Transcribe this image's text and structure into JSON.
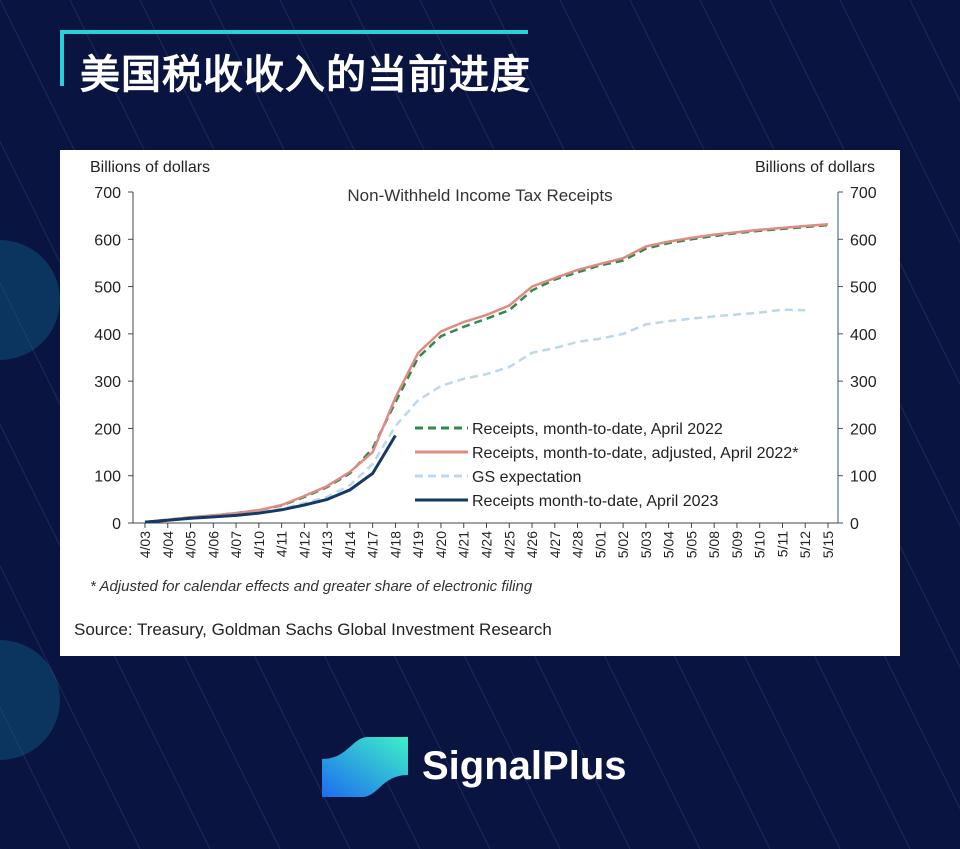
{
  "page": {
    "title": "美国税收收入的当前进度",
    "brand": "SignalPlus",
    "accent_color": "#2ad0d8"
  },
  "chart_data": {
    "type": "line",
    "title": "Non-Withheld Income Tax Receipts",
    "ylabel_left": "Billions of dollars",
    "ylabel_right": "Billions of dollars",
    "ylim": [
      0,
      700
    ],
    "yticks": [
      0,
      100,
      200,
      300,
      400,
      500,
      600,
      700
    ],
    "categories": [
      "4/03",
      "4/04",
      "4/05",
      "4/06",
      "4/07",
      "4/10",
      "4/11",
      "4/12",
      "4/13",
      "4/14",
      "4/17",
      "4/18",
      "4/19",
      "4/20",
      "4/21",
      "4/24",
      "4/25",
      "4/26",
      "4/27",
      "4/28",
      "5/01",
      "5/02",
      "5/03",
      "5/04",
      "5/05",
      "5/08",
      "5/09",
      "5/10",
      "5/11",
      "5/12",
      "5/15"
    ],
    "legend_position": "center-right",
    "series": [
      {
        "name": "Receipts, month-to-date, April 2022",
        "color": "#2e8b4a",
        "style": "dashed",
        "values": [
          2,
          7,
          12,
          16,
          21,
          27,
          37,
          55,
          76,
          105,
          158,
          255,
          350,
          395,
          415,
          432,
          450,
          492,
          515,
          530,
          545,
          555,
          580,
          592,
          600,
          607,
          613,
          618,
          622,
          626,
          630
        ]
      },
      {
        "name": "Receipts, month-to-date, adjusted, April 2022*",
        "color": "#e08a84",
        "style": "solid",
        "values": [
          2,
          7,
          12,
          16,
          21,
          27,
          38,
          57,
          78,
          108,
          150,
          265,
          360,
          405,
          425,
          440,
          460,
          500,
          518,
          535,
          548,
          560,
          585,
          595,
          603,
          610,
          615,
          620,
          624,
          628,
          632
        ]
      },
      {
        "name": "GS expectation",
        "color": "#bcd7ee",
        "style": "dashed",
        "values": [
          2,
          5,
          9,
          13,
          17,
          22,
          30,
          42,
          55,
          80,
          125,
          205,
          260,
          290,
          305,
          315,
          330,
          360,
          370,
          383,
          390,
          400,
          420,
          427,
          432,
          437,
          441,
          445,
          451,
          450,
          null
        ]
      },
      {
        "name": "Receipts month-to-date, April 2023",
        "color": "#133a66",
        "style": "solid",
        "values": [
          2,
          6,
          10,
          13,
          16,
          21,
          28,
          38,
          50,
          70,
          105,
          185,
          null,
          null,
          null,
          null,
          null,
          null,
          null,
          null,
          null,
          null,
          null,
          null,
          null,
          null,
          null,
          null,
          null,
          null,
          null
        ]
      }
    ],
    "footnote": "* Adjusted for calendar effects and greater share of electronic filing",
    "source": "Source: Treasury, Goldman Sachs Global Investment Research"
  }
}
